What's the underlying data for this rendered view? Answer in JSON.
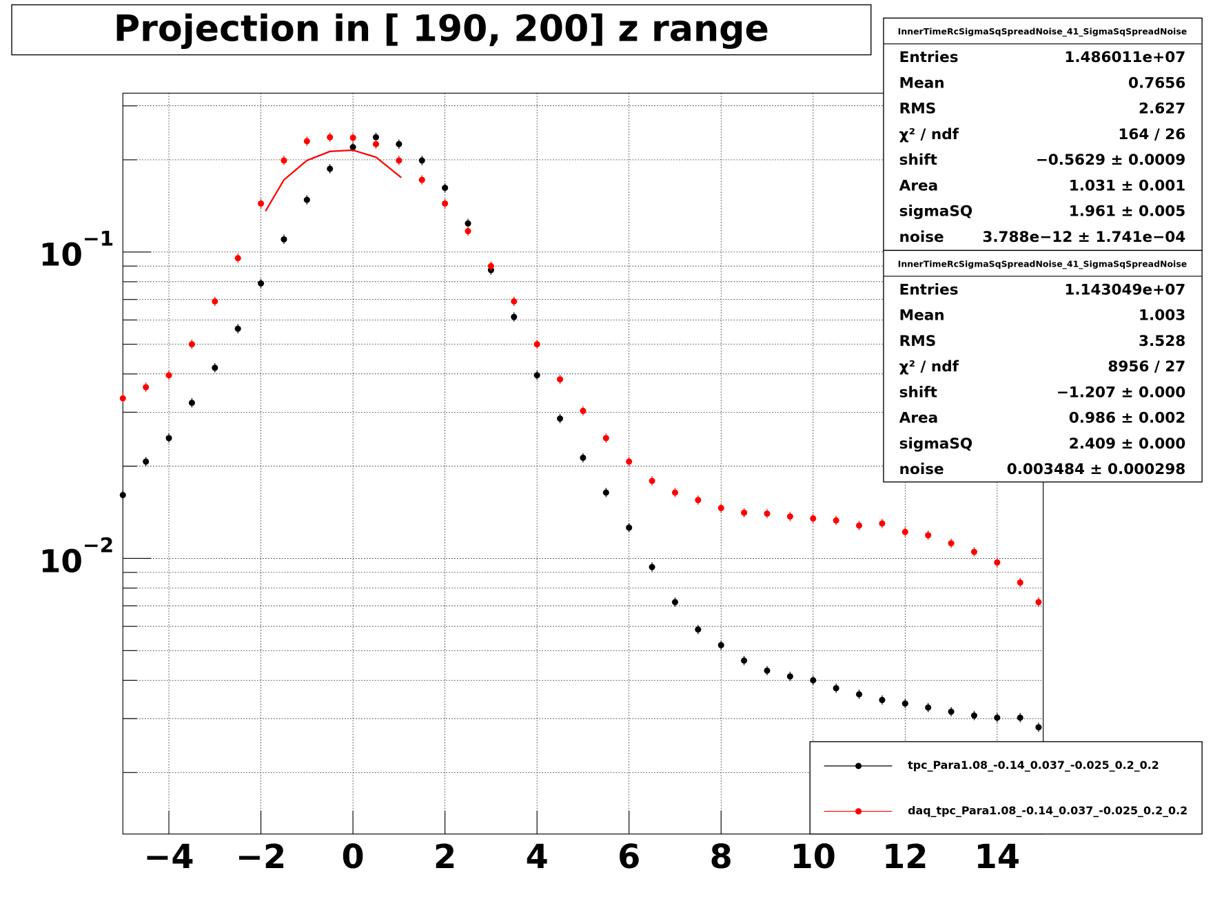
{
  "chart_data": {
    "type": "scatter",
    "title": "Projection in [ 190, 200] z range",
    "x": [
      -5,
      -4.5,
      -4,
      -3.5,
      -3,
      -2.5,
      -2,
      -1.5,
      -1,
      -0.5,
      0,
      0.5,
      1,
      1.5,
      2,
      2.5,
      3,
      3.5,
      4,
      4.5,
      5,
      5.5,
      6,
      6.5,
      7,
      7.5,
      8,
      8.5,
      9,
      9.5,
      10,
      10.5,
      11,
      11.5,
      12,
      12.5,
      13,
      13.5,
      14,
      14.5,
      14.9
    ],
    "series": [
      {
        "name": "tpc_Para1.08_-0.14_0.037_-0.025_0.2_0.2",
        "color": "#000000",
        "values": [
          0.0161,
          0.0207,
          0.0247,
          0.0322,
          0.0419,
          0.0562,
          0.079,
          0.11,
          0.148,
          0.187,
          0.22,
          0.237,
          0.225,
          0.199,
          0.162,
          0.124,
          0.0873,
          0.0614,
          0.0396,
          0.0286,
          0.0213,
          0.0164,
          0.0126,
          0.00937,
          0.0072,
          0.00586,
          0.00521,
          0.00464,
          0.0043,
          0.00412,
          0.004,
          0.00377,
          0.0036,
          0.00345,
          0.00336,
          0.00326,
          0.00316,
          0.00307,
          0.00302,
          0.00302,
          0.00281
        ]
      },
      {
        "name": "daq_tpc_Para1.08_-0.14_0.037_-0.025_0.2_0.2",
        "color": "#ff0000",
        "values": [
          0.0333,
          0.0362,
          0.0396,
          0.05,
          0.069,
          0.0955,
          0.144,
          0.199,
          0.23,
          0.237,
          0.236,
          0.225,
          0.199,
          0.172,
          0.144,
          0.117,
          0.09,
          0.069,
          0.05,
          0.0384,
          0.0303,
          0.0247,
          0.0207,
          0.0179,
          0.0164,
          0.0155,
          0.0146,
          0.0141,
          0.014,
          0.0137,
          0.0135,
          0.0133,
          0.0128,
          0.013,
          0.0122,
          0.0119,
          0.0112,
          0.0105,
          0.0097,
          0.00834,
          0.0072
        ]
      }
    ],
    "fit": {
      "color": "#ff0000",
      "x": [
        -1.9,
        -1.5,
        -1,
        -0.5,
        0,
        0.5,
        1.05
      ],
      "values": [
        0.136,
        0.172,
        0.199,
        0.213,
        0.215,
        0.204,
        0.175
      ]
    },
    "xlim": [
      -5,
      15
    ],
    "xticks": [
      {
        "value": -4,
        "label": "−4"
      },
      {
        "value": -2,
        "label": "−2"
      },
      0,
      2,
      4,
      6,
      8,
      10,
      12,
      14
    ],
    "ylim": [
      0.00126,
      0.33
    ],
    "log_y": true,
    "yticks": [
      {
        "value": 0.01,
        "label": "10",
        "exponent": "−2"
      },
      {
        "value": 0.1,
        "label": "10",
        "exponent": "−1"
      }
    ],
    "yminorticks": [
      0.002,
      0.003,
      0.004,
      0.005,
      0.006,
      0.007,
      0.008,
      0.009,
      0.02,
      0.03,
      0.04,
      0.05,
      0.06,
      0.07,
      0.08,
      0.09,
      0.2,
      0.3
    ],
    "grid": true,
    "stats": [
      {
        "title": "InnerTimeRcSigmaSqSpreadNoise_41_SigmaSqSpreadNoise",
        "rows": [
          [
            "Entries",
            "1.486011e+07"
          ],
          [
            "Mean",
            "0.7656"
          ],
          [
            "RMS",
            "2.627"
          ],
          [
            "χ² / ndf",
            "164 / 26"
          ],
          [
            "shift",
            "−0.5629 ± 0.0009"
          ],
          [
            "Area",
            "1.031 ± 0.001"
          ],
          [
            "sigmaSQ",
            "1.961 ± 0.005"
          ],
          [
            "noise",
            "3.788e−12 ± 1.741e−04"
          ]
        ]
      },
      {
        "title": "InnerTimeRcSigmaSqSpreadNoise_41_SigmaSqSpreadNoise",
        "rows": [
          [
            "Entries",
            "1.143049e+07"
          ],
          [
            "Mean",
            "1.003"
          ],
          [
            "RMS",
            "3.528"
          ],
          [
            "χ² / ndf",
            "8956 / 27"
          ],
          [
            "shift",
            "−1.207 ± 0.000"
          ],
          [
            "Area",
            "0.986 ± 0.002"
          ],
          [
            "sigmaSQ",
            "2.409 ± 0.000"
          ],
          [
            "noise",
            "0.003484 ± 0.000298"
          ]
        ]
      }
    ]
  }
}
